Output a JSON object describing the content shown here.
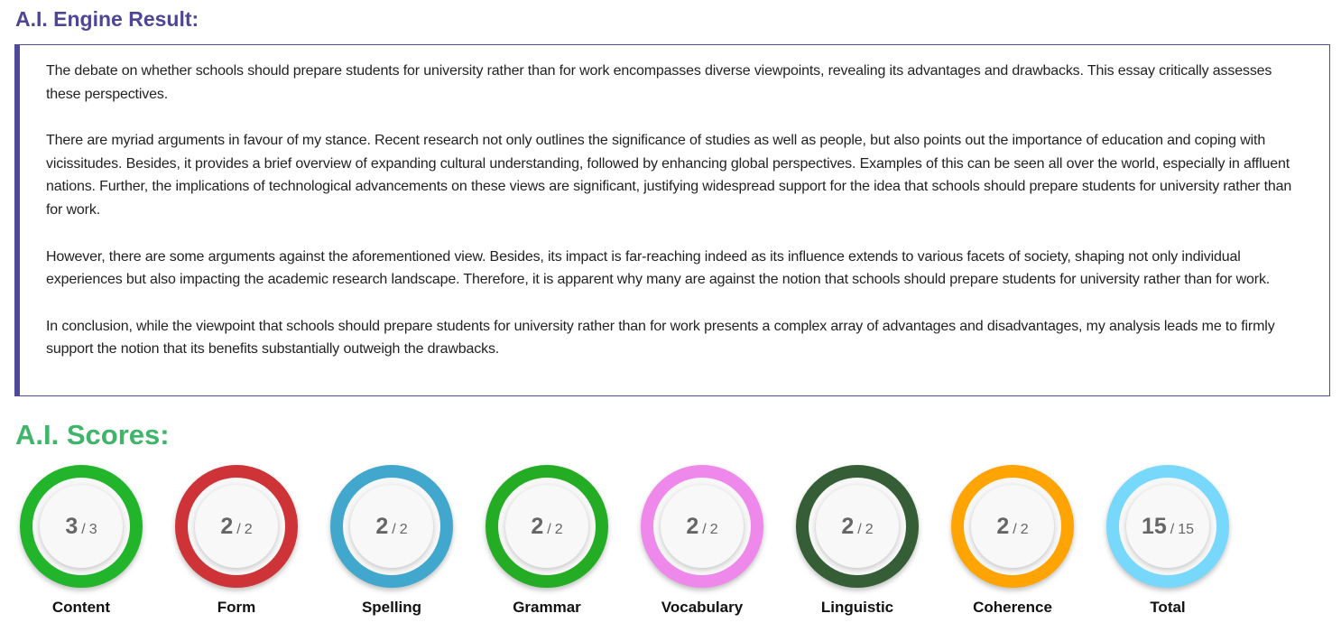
{
  "result": {
    "title": "A.I. Engine Result:",
    "paragraphs": [
      "The debate on whether schools should prepare students for university rather than for work encompasses diverse viewpoints, revealing its advantages and drawbacks. This essay critically assesses these perspectives.",
      "There are myriad arguments in favour of my stance. Recent research not only outlines the significance of studies as well as people, but also points out the importance of education and coping with vicissitudes. Besides, it provides a brief overview of expanding cultural understanding, followed by enhancing global perspectives. Examples of this can be seen all over the world, especially in affluent nations. Further, the implications of technological advancements on these views are significant, justifying widespread support for the idea that schools should prepare students for university rather than for work.",
      "However, there are some arguments against the aforementioned view. Besides, its impact is far-reaching indeed as its influence extends to various facets of society, shaping not only individual experiences but also impacting the academic research landscape. Therefore, it is apparent why many are against the notion that schools should prepare students for university rather than for work.",
      "In conclusion, while the viewpoint that schools should prepare students for university rather than for work presents a complex array of advantages and disadvantages, my analysis leads me to firmly support the notion that its benefits substantially outweigh the drawbacks."
    ]
  },
  "scores": {
    "title": "A.I. Scores:",
    "separator": "/",
    "items": [
      {
        "label": "Content",
        "score": 3,
        "max": 3,
        "color": "#22b52c"
      },
      {
        "label": "Form",
        "score": 2,
        "max": 2,
        "color": "#cd3337"
      },
      {
        "label": "Spelling",
        "score": 2,
        "max": 2,
        "color": "#41a7cc"
      },
      {
        "label": "Grammar",
        "score": 2,
        "max": 2,
        "color": "#24ad24"
      },
      {
        "label": "Vocabulary",
        "score": 2,
        "max": 2,
        "color": "#ee88ea"
      },
      {
        "label": "Linguistic",
        "score": 2,
        "max": 2,
        "color": "#355e37"
      },
      {
        "label": "Coherence",
        "score": 2,
        "max": 2,
        "color": "#ffa402"
      },
      {
        "label": "Total",
        "score": 15,
        "max": 15,
        "color": "#78d8fc"
      }
    ]
  }
}
